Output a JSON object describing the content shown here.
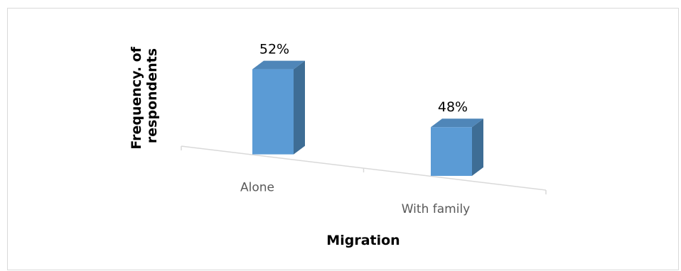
{
  "chart_data": {
    "type": "bar",
    "style": "3d-perspective",
    "categories": [
      "Alone",
      "With family"
    ],
    "values": [
      52,
      48
    ],
    "data_labels": [
      "52%",
      "48%"
    ],
    "xlabel": "Migration",
    "ylabel_lines": [
      "Frequency. of",
      "respondents"
    ],
    "ylim": [
      0,
      60
    ],
    "grid": false,
    "legend": "none",
    "colors": {
      "front": "#5b9bd5",
      "side": "#3e6d95",
      "top": "#4f86b8",
      "floor": "#d9d9d9",
      "frame": "#d9d9d9"
    }
  }
}
